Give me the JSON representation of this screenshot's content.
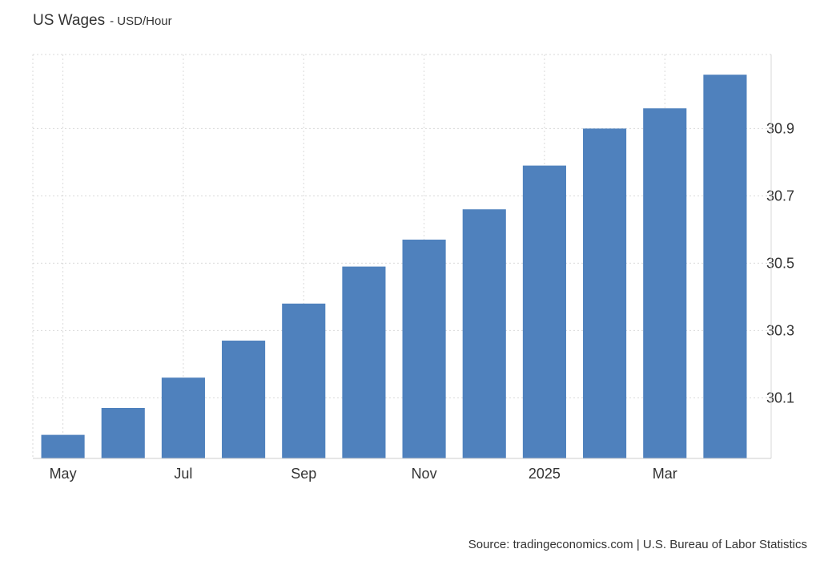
{
  "header": {
    "title": "US Wages",
    "subtitle": "- USD/Hour"
  },
  "footer": {
    "source": "Source: tradingeconomics.com | U.S. Bureau of Labor Statistics"
  },
  "colors": {
    "bar": "#4f81bd",
    "grid": "#d9d9d9",
    "text": "#333333"
  },
  "chart_data": {
    "type": "bar",
    "categories": [
      "2024-05",
      "2024-06",
      "2024-07",
      "2024-08",
      "2024-09",
      "2024-10",
      "2024-11",
      "2024-12",
      "2025-01",
      "2025-02",
      "2025-03",
      "2025-04"
    ],
    "values": [
      29.99,
      30.07,
      30.16,
      30.27,
      30.38,
      30.49,
      30.57,
      30.66,
      30.79,
      30.9,
      30.96,
      31.06
    ],
    "x_tick_labels": [
      {
        "category": "2024-05",
        "label": "May"
      },
      {
        "category": "2024-07",
        "label": "Jul"
      },
      {
        "category": "2024-09",
        "label": "Sep"
      },
      {
        "category": "2024-11",
        "label": "Nov"
      },
      {
        "category": "2025-01",
        "label": "2025"
      },
      {
        "category": "2025-03",
        "label": "Mar"
      }
    ],
    "y_ticks": [
      "30.1",
      "30.3",
      "30.5",
      "30.7",
      "30.9"
    ],
    "ylim": [
      29.92,
      31.12
    ],
    "y_axis_side": "right",
    "grid": true,
    "legend": "none"
  }
}
